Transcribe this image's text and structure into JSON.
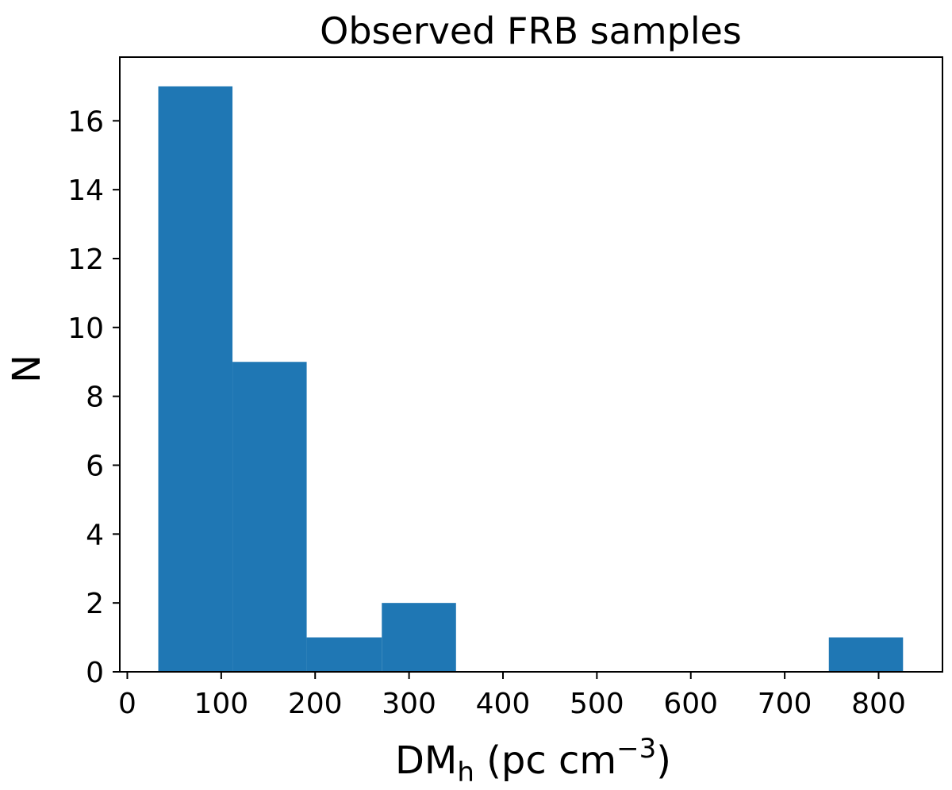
{
  "chart_data": {
    "type": "bar",
    "title": "Observed FRB samples",
    "xlabel": {
      "main": "DM",
      "subscript": "h",
      "unit_prefix": " (pc cm",
      "superscript": "−3",
      "unit_suffix": ")"
    },
    "ylabel": "N",
    "xlim": [
      -8,
      868
    ],
    "ylim": [
      0,
      17.85
    ],
    "xticks": [
      0,
      100,
      200,
      300,
      400,
      500,
      600,
      700,
      800
    ],
    "yticks": [
      0,
      2,
      4,
      6,
      8,
      10,
      12,
      14,
      16
    ],
    "bins": [
      {
        "x0": 33,
        "x1": 112,
        "count": 17
      },
      {
        "x0": 112,
        "x1": 191,
        "count": 9
      },
      {
        "x0": 191,
        "x1": 271,
        "count": 1
      },
      {
        "x0": 271,
        "x1": 350,
        "count": 2
      },
      {
        "x0": 350,
        "x1": 429,
        "count": 0
      },
      {
        "x0": 429,
        "x1": 509,
        "count": 0
      },
      {
        "x0": 509,
        "x1": 588,
        "count": 0
      },
      {
        "x0": 588,
        "x1": 668,
        "count": 0
      },
      {
        "x0": 668,
        "x1": 747,
        "count": 0
      },
      {
        "x0": 747,
        "x1": 826,
        "count": 1
      }
    ],
    "grid": false,
    "legend": "none",
    "bar_color": "#1f77b4"
  }
}
